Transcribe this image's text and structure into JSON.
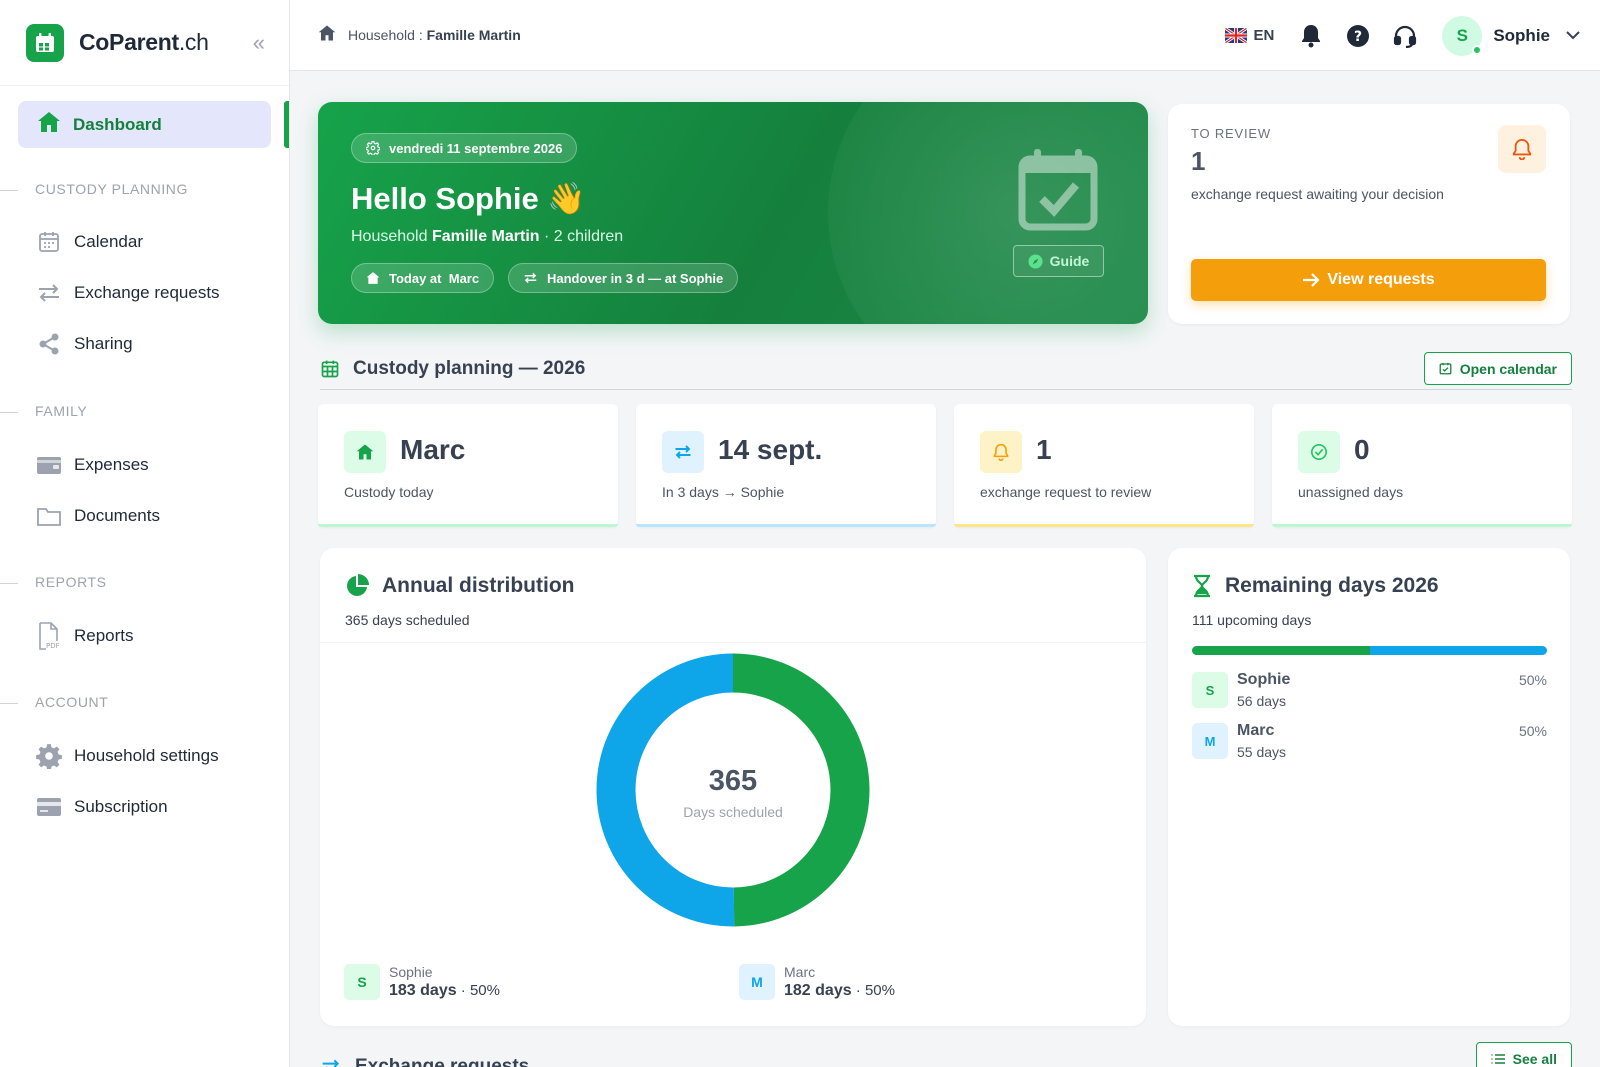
{
  "brand": {
    "name": "CoParent",
    "tld": ".ch"
  },
  "sidebar": {
    "active": {
      "label": "Dashboard"
    },
    "sections": [
      {
        "title": "CUSTODY PLANNING",
        "items": [
          {
            "label": "Calendar"
          },
          {
            "label": "Exchange requests"
          },
          {
            "label": "Sharing"
          }
        ]
      },
      {
        "title": "FAMILY",
        "items": [
          {
            "label": "Expenses"
          },
          {
            "label": "Documents"
          }
        ]
      },
      {
        "title": "REPORTS",
        "items": [
          {
            "label": "Reports"
          }
        ]
      },
      {
        "title": "ACCOUNT",
        "items": [
          {
            "label": "Household settings"
          },
          {
            "label": "Subscription"
          }
        ]
      }
    ]
  },
  "topbar": {
    "breadcrumb_prefix": "Household : ",
    "breadcrumb_value": "Famille Martin",
    "lang": "EN",
    "user": {
      "initial": "S",
      "name": "Sophie"
    }
  },
  "hero": {
    "date": "vendredi 11 septembre 2026",
    "greeting": "Hello Sophie 👋",
    "household_prefix": "Household ",
    "household_name": "Famille Martin",
    "household_suffix": " · 2 children",
    "today_label": "Today at",
    "today_value": "Marc",
    "handover": "Handover in 3 d — at Sophie",
    "guide": "Guide"
  },
  "review": {
    "kicker": "TO REVIEW",
    "count": "1",
    "desc": "exchange request awaiting your decision",
    "button": "View requests"
  },
  "planning": {
    "title": "Custody planning — 2026",
    "open_calendar": "Open calendar"
  },
  "stats": [
    {
      "value": "Marc",
      "sub": "Custody today",
      "color": "#16a34a",
      "bg": "#dcfce7"
    },
    {
      "value": "14 sept.",
      "sub": "In 3 days → Sophie",
      "color": "#0ea5e9",
      "bg": "#e0f2fe"
    },
    {
      "value": "1",
      "sub": "exchange request to review",
      "color": "#f59e0b",
      "bg": "#fef3c7"
    },
    {
      "value": "0",
      "sub": "unassigned days",
      "color": "#22c55e",
      "bg": "#dcfce7"
    }
  ],
  "annual": {
    "title": "Annual distribution",
    "sub": "365 days scheduled",
    "center_num": "365",
    "center_sub": "Days scheduled",
    "legend": [
      {
        "initial": "S",
        "name": "Sophie",
        "days": "183 days",
        "pct": " · 50%"
      },
      {
        "initial": "M",
        "name": "Marc",
        "days": "182 days",
        "pct": " · 50%"
      }
    ]
  },
  "chart_data": {
    "type": "pie",
    "labels": [
      "Marc",
      "Sophie"
    ],
    "values": [
      182,
      183
    ],
    "colors": [
      "#16a34a",
      "#0ea5e9"
    ],
    "center_label": "365"
  },
  "remaining": {
    "title": "Remaining days 2026",
    "sub": "111 upcoming days",
    "shares": [
      0.5,
      0.5
    ],
    "rows": [
      {
        "initial": "S",
        "name": "Sophie",
        "days": "56 days",
        "pct": "50%"
      },
      {
        "initial": "M",
        "name": "Marc",
        "days": "55 days",
        "pct": "50%"
      }
    ]
  },
  "exchange_section": {
    "title": "Exchange requests",
    "see_all": "See all"
  },
  "colors": {
    "primary": "#16a34a",
    "accent_blue": "#0ea5e9",
    "warning": "#f59e0b"
  }
}
